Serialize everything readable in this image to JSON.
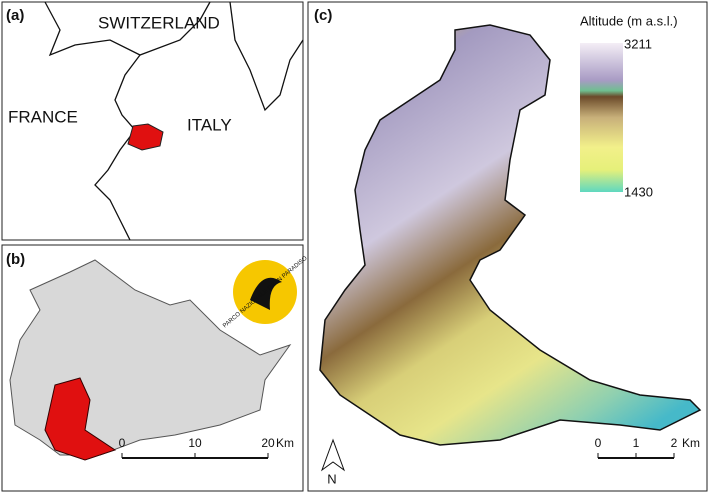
{
  "panels": {
    "a": {
      "label": "(a)",
      "countries": [
        "SWITZERLAND",
        "FRANCE",
        "ITALY"
      ]
    },
    "b": {
      "label": "(b)",
      "logo": "PARCO NAZIONALE GRAN PARADISO",
      "scale": [
        0,
        10,
        20
      ],
      "unit": "Km"
    },
    "c": {
      "label": "(c)",
      "legend_title": "Altitude (m a.s.l.)",
      "legend_max": 3211,
      "legend_min": 1430,
      "scale": [
        0,
        1,
        2
      ],
      "unit": "Km",
      "north": "N"
    }
  }
}
